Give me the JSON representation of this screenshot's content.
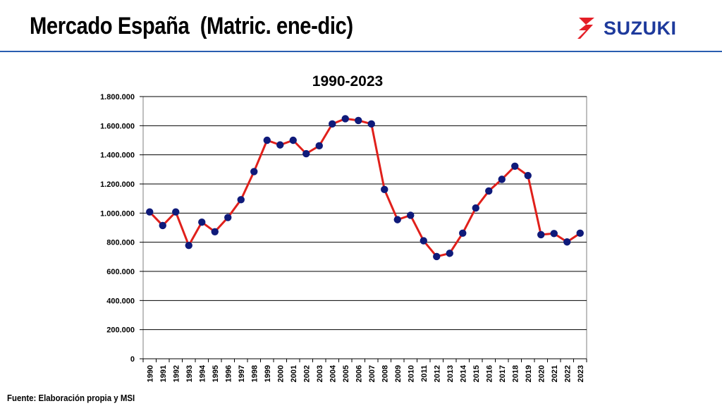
{
  "header": {
    "title": "Mercado España  (Matric. ene-dic)",
    "brand_name": "SUZUKI",
    "brand_icon": "suzuki-s-logo-icon",
    "brand_color": "#1e3a9c",
    "logo_red": "#e41e26",
    "rule_color": "#2a5db0"
  },
  "footer": {
    "source": "Fuente: Elaboración propia y MSI"
  },
  "chart_data": {
    "type": "line",
    "title": "1990-2023",
    "xlabel": "",
    "ylabel": "",
    "categories": [
      "1990",
      "1991",
      "1992",
      "1993",
      "1994",
      "1995",
      "1996",
      "1997",
      "1998",
      "1999",
      "2000",
      "2001",
      "2002",
      "2003",
      "2004",
      "2005",
      "2006",
      "2007",
      "2008",
      "2009",
      "2010",
      "2011",
      "2012",
      "2013",
      "2014",
      "2015",
      "2016",
      "2017",
      "2018",
      "2019",
      "2020",
      "2021",
      "2022",
      "2023"
    ],
    "series": [
      {
        "values": [
          1008000,
          915000,
          1008000,
          778000,
          938000,
          872000,
          970000,
          1092000,
          1285000,
          1500000,
          1468000,
          1500000,
          1408000,
          1462000,
          1612000,
          1648000,
          1636000,
          1612000,
          1162000,
          955000,
          985000,
          810000,
          702000,
          724000,
          862000,
          1035000,
          1152000,
          1232000,
          1322000,
          1258000,
          852000,
          860000,
          802000,
          862000
        ],
        "line_color": "#e0201b",
        "marker_color": "#0f1a7a"
      }
    ],
    "ylim": [
      0,
      1800000
    ],
    "yticks": [
      0,
      200000,
      400000,
      600000,
      800000,
      1000000,
      1200000,
      1400000,
      1600000,
      1800000
    ],
    "ytick_labels": [
      "0",
      "200.000",
      "400.000",
      "600.000",
      "800.000",
      "1.000.000",
      "1.200.000",
      "1.400.000",
      "1.600.000",
      "1.800.000"
    ],
    "grid": true,
    "legend": "none"
  }
}
